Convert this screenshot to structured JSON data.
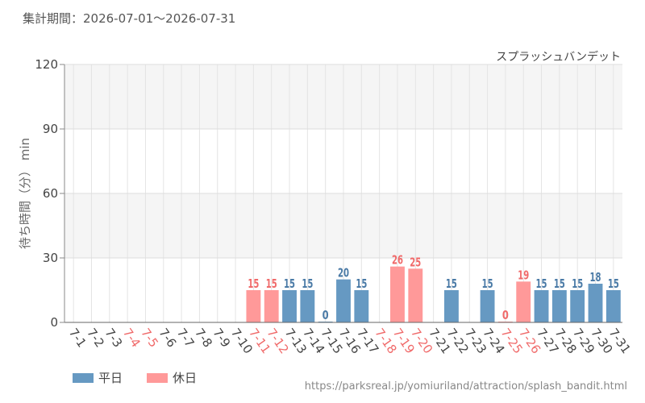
{
  "period_text": "集計期間：2026-07-01～2026-07-31",
  "source_url": "https://parksreal.jp/yomiuriland/attraction/splash_bandit.html",
  "chart_data": {
    "type": "bar",
    "attraction_name": "スプラッシュバンデット",
    "ylabel": "待ち時間（分） min",
    "ylim": [
      0,
      120
    ],
    "yticks": [
      0,
      30,
      60,
      90,
      120
    ],
    "grid": true,
    "categories": [
      "7-1",
      "7-2",
      "7-3",
      "7-4",
      "7-5",
      "7-6",
      "7-7",
      "7-8",
      "7-9",
      "7-10",
      "7-11",
      "7-12",
      "7-13",
      "7-14",
      "7-15",
      "7-16",
      "7-17",
      "7-18",
      "7-19",
      "7-20",
      "7-21",
      "7-22",
      "7-23",
      "7-24",
      "7-25",
      "7-26",
      "7-27",
      "7-28",
      "7-29",
      "7-30",
      "7-31"
    ],
    "values": [
      null,
      null,
      null,
      null,
      null,
      null,
      null,
      null,
      null,
      null,
      15,
      15,
      15,
      15,
      0,
      20,
      15,
      null,
      26,
      25,
      null,
      15,
      null,
      15,
      0,
      19,
      15,
      15,
      15,
      18,
      15
    ],
    "day_type": [
      "weekday",
      "weekday",
      "weekday",
      "holiday",
      "holiday",
      "weekday",
      "weekday",
      "weekday",
      "weekday",
      "weekday",
      "holiday",
      "holiday",
      "weekday",
      "weekday",
      "weekday",
      "weekday",
      "weekday",
      "holiday",
      "holiday",
      "holiday",
      "weekday",
      "weekday",
      "weekday",
      "weekday",
      "holiday",
      "holiday",
      "weekday",
      "weekday",
      "weekday",
      "weekday",
      "weekday"
    ],
    "legend": [
      {
        "key": "weekday",
        "name": "平日",
        "color": "#6699c2"
      },
      {
        "key": "holiday",
        "name": "休日",
        "color": "#ff9999"
      }
    ],
    "label_colors": {
      "weekday": "#4a7aa6",
      "holiday": "#f06a6a"
    },
    "legend_position": "bottom-left"
  }
}
